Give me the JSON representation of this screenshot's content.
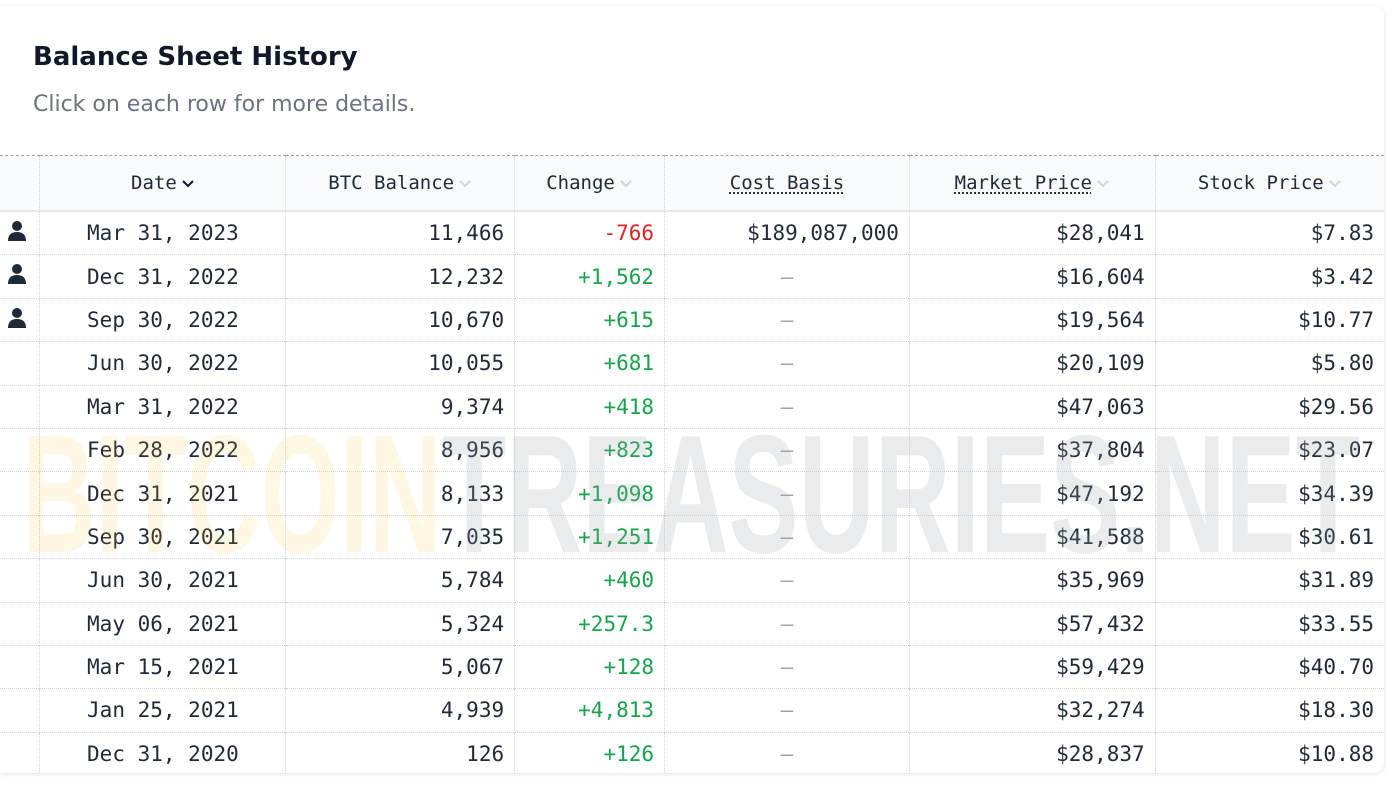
{
  "header": {
    "title": "Balance Sheet History",
    "subtitle": "Click on each row for more details."
  },
  "watermark": {
    "part1": "BITCOIN",
    "part2": "TREASURIES.NET"
  },
  "table": {
    "columns": [
      "Date",
      "BTC Balance",
      "Change",
      "Cost Basis",
      "Market Price",
      "Stock Price"
    ],
    "rows": [
      [
        "Mar 31, 2023",
        "11,466",
        "-766",
        "$189,087,000",
        "$28,041",
        "$7.83"
      ],
      [
        "Dec 31, 2022",
        "12,232",
        "+1,562",
        "—",
        "$16,604",
        "$3.42"
      ],
      [
        "Sep 30, 2022",
        "10,670",
        "+615",
        "—",
        "$19,564",
        "$10.77"
      ],
      [
        "Jun 30, 2022",
        "10,055",
        "+681",
        "—",
        "$20,109",
        "$5.80"
      ],
      [
        "Mar 31, 2022",
        "9,374",
        "+418",
        "—",
        "$47,063",
        "$29.56"
      ],
      [
        "Feb 28, 2022",
        "8,956",
        "+823",
        "—",
        "$37,804",
        "$23.07"
      ],
      [
        "Dec 31, 2021",
        "8,133",
        "+1,098",
        "—",
        "$47,192",
        "$34.39"
      ],
      [
        "Sep 30, 2021",
        "7,035",
        "+1,251",
        "—",
        "$41,588",
        "$30.61"
      ],
      [
        "Jun 30, 2021",
        "5,784",
        "+460",
        "—",
        "$35,969",
        "$31.89"
      ],
      [
        "May 06, 2021",
        "5,324",
        "+257.3",
        "—",
        "$57,432",
        "$33.55"
      ],
      [
        "Mar 15, 2021",
        "5,067",
        "+128",
        "—",
        "$59,429",
        "$40.70"
      ],
      [
        "Jan 25, 2021",
        "4,939",
        "+4,813",
        "—",
        "$32,274",
        "$18.30"
      ],
      [
        "Dec 31, 2020",
        "126",
        "+126",
        "—",
        "$28,837",
        "$10.88"
      ]
    ]
  }
}
